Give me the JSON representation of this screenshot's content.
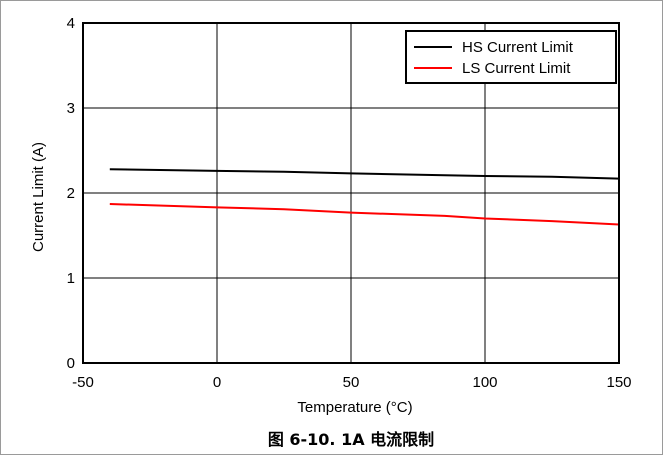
{
  "chart_data": {
    "type": "line",
    "caption": "图 6-10. 1A 电流限制",
    "xlabel": "Temperature (°C)",
    "ylabel": "Current Limit (A)",
    "xlim": [
      -50,
      150
    ],
    "ylim": [
      0,
      4
    ],
    "xticks": [
      "-50",
      "0",
      "50",
      "100",
      "150"
    ],
    "yticks": [
      "0",
      "1",
      "2",
      "3",
      "4"
    ],
    "grid": true,
    "legend_position": "top-right",
    "series": [
      {
        "name": "HS Current Limit",
        "color": "#000000",
        "x": [
          -40,
          0,
          25,
          50,
          85,
          100,
          125,
          150
        ],
        "y": [
          2.28,
          2.26,
          2.25,
          2.23,
          2.21,
          2.2,
          2.19,
          2.17
        ]
      },
      {
        "name": "LS Current Limit",
        "color": "#ff0000",
        "x": [
          -40,
          0,
          25,
          50,
          85,
          100,
          125,
          150
        ],
        "y": [
          1.87,
          1.83,
          1.81,
          1.77,
          1.73,
          1.7,
          1.67,
          1.63
        ]
      }
    ]
  }
}
